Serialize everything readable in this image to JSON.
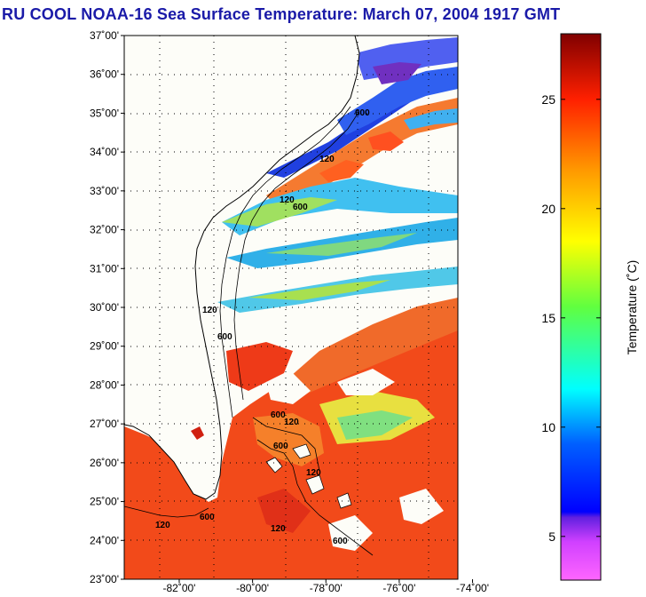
{
  "title": "RU COOL  NOAA-16  Sea Surface Temperature:  March 07, 2004 1917 GMT",
  "map": {
    "lat_labels": [
      "37˚00'",
      "36˚00'",
      "35˚00'",
      "34˚00'",
      "33˚00'",
      "32˚00'",
      "31˚00'",
      "30˚00'",
      "29˚00'",
      "28˚00'",
      "27˚00'",
      "26˚00'",
      "25˚00'",
      "24˚00'",
      "23˚00'"
    ],
    "lon_labels": [
      "-82˚00'",
      "-80˚00'",
      "-78˚00'",
      "-76˚00'",
      "-74˚00'"
    ],
    "lat_range": [
      23,
      37
    ],
    "lon_range": [
      -83.5,
      -74.4
    ],
    "contour_labels": [
      "120",
      "600",
      "120",
      "600",
      "120",
      "600",
      "600",
      "120",
      "600",
      "120",
      "600",
      "120",
      "120",
      "600"
    ]
  },
  "colorbar": {
    "title": "Temperature (˚C)",
    "range": [
      3,
      28
    ],
    "tick_values": [
      5,
      10,
      15,
      20,
      25
    ],
    "tick_labels": [
      "5",
      "10",
      "15",
      "20",
      "25"
    ]
  }
}
